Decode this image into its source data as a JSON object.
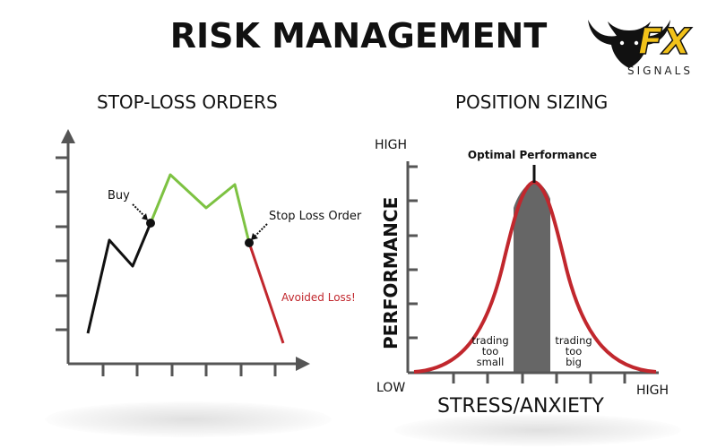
{
  "header": {
    "title": "RISK MANAGEMENT"
  },
  "logo": {
    "brand": "FX",
    "subtitle": "SIGNALS",
    "colors": {
      "accent": "#f2c21a",
      "dark": "#111111"
    }
  },
  "stop_loss": {
    "section_title": "STOP-LOSS ORDERS",
    "labels": {
      "buy": "Buy",
      "stop_loss_order": "Stop Loss Order",
      "avoided_loss": "Avoided Loss!"
    },
    "colors": {
      "before_buy": "#111111",
      "after_buy": "#7dc242",
      "loss": "#c1272d"
    }
  },
  "position_sizing": {
    "section_title": "POSITION SIZING",
    "labels": {
      "high_y": "HIGH",
      "low": "LOW",
      "high_x": "HIGH",
      "y_axis": "PERFORMANCE",
      "x_axis": "STRESS/ANXIETY",
      "optimal": "Optimal Performance",
      "small_line1": "trading",
      "small_line2": "too",
      "small_line3": "small",
      "big_line1": "trading",
      "big_line2": "too",
      "big_line3": "big"
    },
    "colors": {
      "curve": "#c1272d",
      "band": "#666666"
    }
  }
}
